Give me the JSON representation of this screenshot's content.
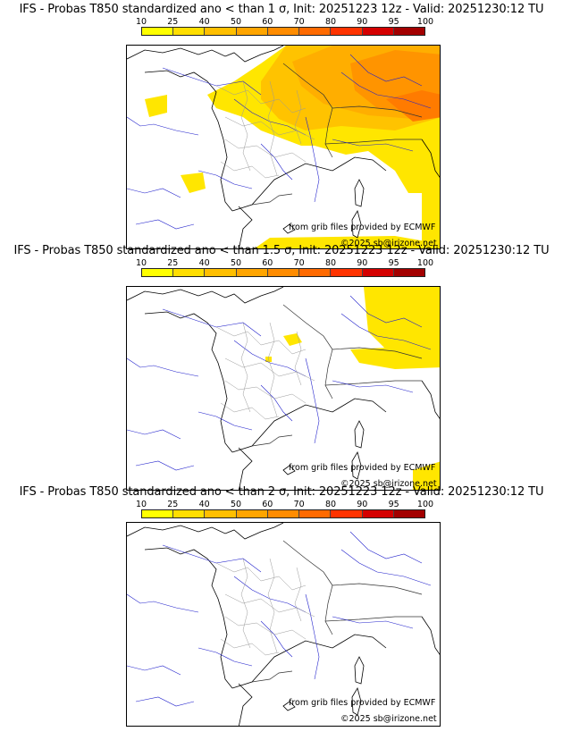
{
  "scale": {
    "labels": [
      "10",
      "25",
      "40",
      "50",
      "60",
      "70",
      "80",
      "90",
      "95",
      "100"
    ],
    "colors": [
      "#ffff00",
      "#ffde00",
      "#ffbf00",
      "#ffa500",
      "#ff8c00",
      "#ff6a00",
      "#ff3300",
      "#d40000",
      "#a30000",
      "#5c0000"
    ]
  },
  "panels": [
    {
      "title": "IFS - Probas T850  standardized ano < than 1 σ, Init: 20251223 12z - Valid: 20251230:12 TU",
      "credit_source": "from grib files provided by ECMWF",
      "credit_copyright": "©2025 sb@irizone.net"
    },
    {
      "title": "IFS - Probas T850  standardized ano < than 1.5 σ, Init: 20251223 12z - Valid: 20251230:12 TU",
      "credit_source": "from grib files provided by ECMWF",
      "credit_copyright": "©2025 sb@irizone.net"
    },
    {
      "title": "IFS - Probas T850  standardized ano < than 2 σ, Init: 20251223 12z - Valid: 20251230:12 TU",
      "credit_source": "from grib files provided by ECMWF",
      "credit_copyright": "©2025 sb@irizone.net"
    }
  ]
}
